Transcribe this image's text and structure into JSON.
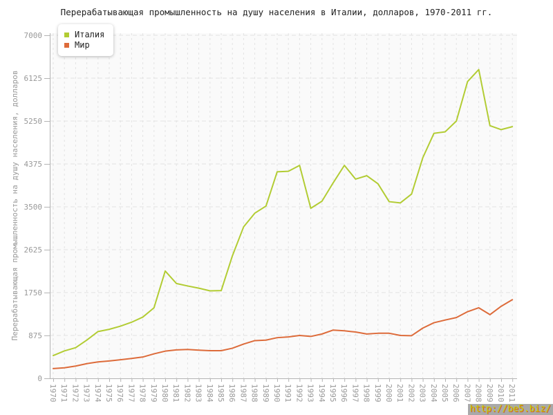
{
  "chart_data": {
    "type": "line",
    "title": "Перерабатывающая промышленность на душу населения в Италии, долларов, 1970-2011 гг.",
    "ylabel": "Перерабатывающая промышленность на душу населения, долларов",
    "xlabel": "",
    "ylim": [
      0,
      7000
    ],
    "y_ticks": [
      0,
      875,
      1750,
      2625,
      3500,
      4375,
      5250,
      6125,
      7000
    ],
    "grid": true,
    "legend_position": "top-left",
    "categories": [
      "1970",
      "1971",
      "1972",
      "1973",
      "1974",
      "1975",
      "1976",
      "1977",
      "1978",
      "1979",
      "1980",
      "1981",
      "1982",
      "1983",
      "1984",
      "1985",
      "1986",
      "1987",
      "1988",
      "1989",
      "1990",
      "1991",
      "1992",
      "1993",
      "1994",
      "1995",
      "1996",
      "1997",
      "1998",
      "1999",
      "2000",
      "2001",
      "2002",
      "2003",
      "2004",
      "2005",
      "2006",
      "2007",
      "2008",
      "2009",
      "2010",
      "2011"
    ],
    "series": [
      {
        "name": "Италия",
        "color": "#b2cc33",
        "values": [
          465,
          560,
          625,
          780,
          955,
          1000,
          1065,
          1145,
          1250,
          1440,
          2190,
          1935,
          1885,
          1840,
          1785,
          1790,
          2500,
          3090,
          3370,
          3515,
          4215,
          4225,
          4345,
          3470,
          3615,
          3990,
          4345,
          4065,
          4135,
          3970,
          3605,
          3580,
          3760,
          4500,
          5000,
          5030,
          5250,
          6055,
          6300,
          5155,
          5075,
          5135
        ]
      },
      {
        "name": "Мир",
        "color": "#dd6b3a",
        "values": [
          200,
          215,
          250,
          300,
          335,
          355,
          380,
          405,
          435,
          500,
          555,
          580,
          590,
          575,
          565,
          565,
          615,
          700,
          770,
          780,
          830,
          845,
          875,
          855,
          905,
          985,
          970,
          945,
          905,
          920,
          920,
          875,
          870,
          1025,
          1135,
          1190,
          1240,
          1360,
          1440,
          1300,
          1470,
          1605
        ]
      }
    ]
  },
  "watermark": {
    "text": "http://be5.biz/",
    "color": "#c6d405",
    "background": "#a9a9a9"
  }
}
